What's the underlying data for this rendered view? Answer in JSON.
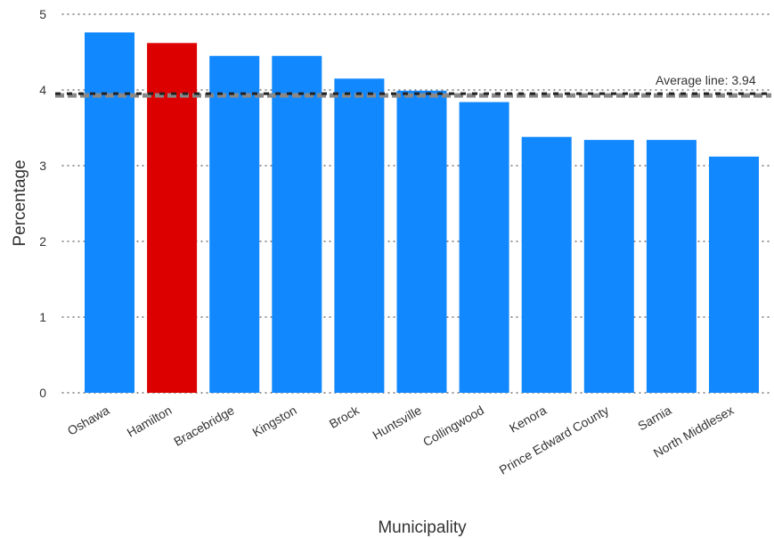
{
  "chart_data": {
    "type": "bar",
    "title": "",
    "xlabel": "Municipality",
    "ylabel": "Percentage",
    "ylim": [
      0,
      5
    ],
    "yticks": [
      0,
      1,
      2,
      3,
      4,
      5
    ],
    "grid": "horizontal-dotted",
    "categories": [
      "Oshawa",
      "Hamilton",
      "Bracebridge",
      "Kingston",
      "Brock",
      "Huntsville",
      "Collingwood",
      "Kenora",
      "Prince Edward County",
      "Sarnia",
      "North Middlesex"
    ],
    "values": [
      4.76,
      4.62,
      4.45,
      4.45,
      4.15,
      3.99,
      3.84,
      3.38,
      3.34,
      3.34,
      3.12
    ],
    "highlight_index": 1,
    "colors": {
      "bar": "#1288ff",
      "highlight": "#dd0000",
      "average_line": "#888888",
      "reference_line": "#222222"
    },
    "average": {
      "value": 3.94,
      "label": "Average line: 3.94"
    }
  }
}
